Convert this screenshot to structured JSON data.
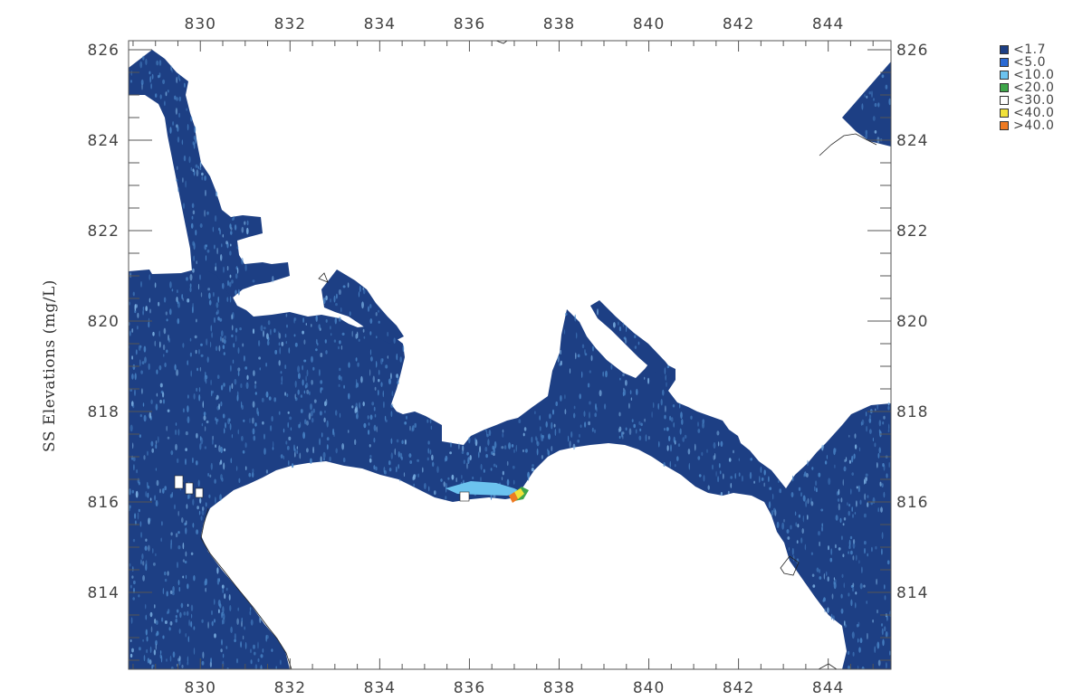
{
  "map": {
    "ylabel": "SS Elevations (mg/L)",
    "x_ticks": [
      "830",
      "832",
      "834",
      "836",
      "838",
      "840",
      "842",
      "844"
    ],
    "y_ticks": [
      "826",
      "824",
      "822",
      "820",
      "818",
      "816",
      "814"
    ],
    "x_range": [
      828.4,
      845.4
    ],
    "y_range": [
      812.3,
      826.2
    ],
    "water_color": "#1d3f84",
    "speckle_color": "#4a86c8",
    "plume_colors": [
      "#6cc3ef",
      "#3fa64a",
      "#f2e23a",
      "#ee7a22"
    ]
  },
  "legend": {
    "items": [
      {
        "label": "<1.7",
        "color": "#1d3f84"
      },
      {
        "label": "<5.0",
        "color": "#2a6ad4"
      },
      {
        "label": "<10.0",
        "color": "#6cc3ef"
      },
      {
        "label": "<20.0",
        "color": "#3fa64a"
      },
      {
        "label": "<30.0",
        "color": "#ffffff"
      },
      {
        "label": "<40.0",
        "color": "#f2e23a"
      },
      {
        "label": ">40.0",
        "color": "#ee7a22"
      }
    ]
  }
}
